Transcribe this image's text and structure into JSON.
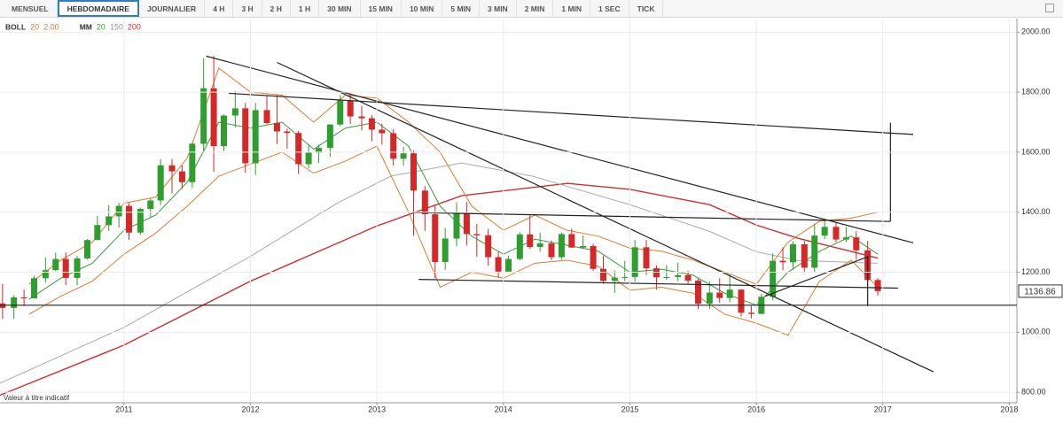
{
  "toolbar": {
    "buttons": [
      "MENSUEL",
      "HEBDOMADAIRE",
      "JOURNALIER",
      "4 H",
      "3 H",
      "2 H",
      "1 H",
      "30 MIN",
      "15 MIN",
      "10 MIN",
      "5 MIN",
      "3 MIN",
      "2 MIN",
      "1 MIN",
      "1 SEC",
      "TICK"
    ],
    "selected": 1
  },
  "chart_data": {
    "type": "candlestick",
    "indicators": [
      {
        "name": "BOLL",
        "params": [
          20,
          "2.00"
        ],
        "colors": [
          "#e07b2e",
          "#e07b2e"
        ]
      },
      {
        "name": "MM",
        "params": [
          20,
          150,
          200
        ],
        "colors": [
          "#3c9a3c",
          "#999999",
          "#d32f2f"
        ]
      }
    ],
    "note": "Valeur à titre indicatif",
    "xlim": [
      2010.02,
      2018.06
    ],
    "xticks": [
      2011,
      2012,
      2013,
      2014,
      2015,
      2016,
      2017,
      2018
    ],
    "ylim": [
      765,
      2045
    ],
    "yticks": [
      {
        "value": 800,
        "label": "800.00"
      },
      {
        "value": 1000,
        "label": "1000.00"
      },
      {
        "value": 1200,
        "label": "1200.00"
      },
      {
        "value": 1400,
        "label": "1400.00"
      },
      {
        "value": 1600,
        "label": "1600.00"
      },
      {
        "value": 1800,
        "label": "1800.00"
      },
      {
        "value": 2000,
        "label": "2000.00"
      }
    ],
    "grid": true,
    "up_color": "#2e9e2e",
    "down_color": "#d62828",
    "last_price": 1136.86,
    "x": [
      2010.04,
      2010.13,
      2010.21,
      2010.29,
      2010.38,
      2010.46,
      2010.54,
      2010.63,
      2010.71,
      2010.79,
      2010.88,
      2010.96,
      2011.04,
      2011.13,
      2011.21,
      2011.29,
      2011.38,
      2011.46,
      2011.54,
      2011.63,
      2011.71,
      2011.79,
      2011.88,
      2011.96,
      2012.04,
      2012.13,
      2012.21,
      2012.29,
      2012.38,
      2012.46,
      2012.54,
      2012.63,
      2012.71,
      2012.79,
      2012.88,
      2012.96,
      2013.04,
      2013.13,
      2013.21,
      2013.29,
      2013.38,
      2013.46,
      2013.54,
      2013.63,
      2013.71,
      2013.79,
      2013.88,
      2013.96,
      2014.04,
      2014.13,
      2014.21,
      2014.29,
      2014.38,
      2014.46,
      2014.54,
      2014.63,
      2014.71,
      2014.79,
      2014.88,
      2014.96,
      2015.04,
      2015.13,
      2015.21,
      2015.29,
      2015.38,
      2015.46,
      2015.54,
      2015.63,
      2015.71,
      2015.79,
      2015.88,
      2015.96,
      2016.04,
      2016.13,
      2016.21,
      2016.29,
      2016.38,
      2016.46,
      2016.54,
      2016.63,
      2016.71,
      2016.79,
      2016.88,
      2016.96
    ],
    "open": [
      1096,
      1081,
      1116,
      1113,
      1180,
      1207,
      1244,
      1181,
      1246,
      1307,
      1357,
      1386,
      1421,
      1332,
      1411,
      1439,
      1556,
      1536,
      1500,
      1628,
      1813,
      1620,
      1722,
      1746,
      1563,
      1740,
      1697,
      1669,
      1664,
      1560,
      1598,
      1614,
      1692,
      1772,
      1719,
      1713,
      1675,
      1663,
      1578,
      1596,
      1472,
      1393,
      1234,
      1312,
      1396,
      1327,
      1323,
      1250,
      1202,
      1244,
      1326,
      1284,
      1296,
      1250,
      1327,
      1282,
      1287,
      1211,
      1171,
      1182,
      1184,
      1283,
      1213,
      1183,
      1184,
      1190,
      1172,
      1095,
      1132,
      1114,
      1142,
      1065,
      1061,
      1118,
      1238,
      1233,
      1293,
      1215,
      1322,
      1351,
      1309,
      1316,
      1273,
      1174
    ],
    "high": [
      1161,
      1123,
      1142,
      1188,
      1249,
      1265,
      1266,
      1254,
      1310,
      1388,
      1424,
      1431,
      1431,
      1415,
      1447,
      1577,
      1577,
      1556,
      1632,
      1913,
      1921,
      1725,
      1803,
      1764,
      1764,
      1791,
      1790,
      1678,
      1671,
      1627,
      1625,
      1693,
      1790,
      1796,
      1754,
      1723,
      1695,
      1677,
      1617,
      1606,
      1487,
      1424,
      1348,
      1433,
      1434,
      1361,
      1344,
      1268,
      1255,
      1333,
      1392,
      1331,
      1306,
      1332,
      1345,
      1322,
      1295,
      1255,
      1206,
      1238,
      1307,
      1308,
      1223,
      1224,
      1232,
      1205,
      1178,
      1170,
      1180,
      1191,
      1142,
      1088,
      1128,
      1263,
      1283,
      1303,
      1304,
      1362,
      1375,
      1367,
      1352,
      1337,
      1304,
      1180
    ],
    "low": [
      1044,
      1045,
      1087,
      1113,
      1165,
      1204,
      1157,
      1157,
      1243,
      1307,
      1337,
      1349,
      1308,
      1325,
      1382,
      1424,
      1463,
      1478,
      1480,
      1601,
      1535,
      1604,
      1682,
      1531,
      1524,
      1693,
      1627,
      1611,
      1527,
      1547,
      1564,
      1585,
      1687,
      1694,
      1672,
      1636,
      1625,
      1555,
      1555,
      1322,
      1338,
      1180,
      1208,
      1286,
      1289,
      1251,
      1221,
      1182,
      1200,
      1240,
      1277,
      1268,
      1240,
      1241,
      1282,
      1281,
      1204,
      1161,
      1131,
      1170,
      1168,
      1191,
      1142,
      1175,
      1170,
      1162,
      1077,
      1077,
      1098,
      1100,
      1052,
      1046,
      1061,
      1106,
      1207,
      1208,
      1199,
      1200,
      1310,
      1300,
      1301,
      1241,
      1171,
      1122
    ],
    "close": [
      1081,
      1116,
      1113,
      1180,
      1207,
      1244,
      1181,
      1246,
      1307,
      1357,
      1386,
      1421,
      1332,
      1411,
      1439,
      1556,
      1536,
      1500,
      1628,
      1813,
      1620,
      1722,
      1746,
      1563,
      1740,
      1697,
      1669,
      1664,
      1560,
      1598,
      1614,
      1692,
      1772,
      1719,
      1713,
      1675,
      1663,
      1578,
      1596,
      1472,
      1393,
      1234,
      1312,
      1396,
      1327,
      1323,
      1250,
      1202,
      1244,
      1326,
      1284,
      1296,
      1250,
      1327,
      1282,
      1287,
      1211,
      1171,
      1182,
      1184,
      1283,
      1213,
      1183,
      1184,
      1190,
      1172,
      1095,
      1132,
      1114,
      1142,
      1065,
      1061,
      1118,
      1238,
      1233,
      1293,
      1215,
      1322,
      1351,
      1309,
      1316,
      1273,
      1174,
      1137
    ],
    "overlays": [
      {
        "color": "#d32f2f",
        "x": [
          2010.02,
          2011,
          2012,
          2013,
          2013.67,
          2014.51,
          2015,
          2015.63,
          2016,
          2016.33,
          2016.96
        ],
        "values": [
          790,
          957,
          1170,
          1354,
          1455,
          1496,
          1476,
          1425,
          1357,
          1313,
          1247
        ]
      },
      {
        "color": "#aaaaaa",
        "x": [
          2010.02,
          2011,
          2012,
          2012.69,
          2013.11,
          2013.67,
          2014.23,
          2015,
          2015.63,
          2016,
          2016.33,
          2016.96
        ],
        "values": [
          830,
          1016,
          1253,
          1431,
          1520,
          1564,
          1520,
          1425,
          1336,
          1268,
          1239,
          1230
        ]
      },
      {
        "color": "#3c9a3c",
        "x": [
          2010.25,
          2010.5,
          2010.75,
          2011,
          2011.25,
          2011.5,
          2011.75,
          2012,
          2012.25,
          2012.5,
          2012.75,
          2013,
          2013.25,
          2013.5,
          2013.75,
          2014,
          2014.25,
          2014.5,
          2014.75,
          2015,
          2015.25,
          2015.5,
          2015.75,
          2016,
          2016.25,
          2016.5,
          2016.75,
          2016.96
        ],
        "values": [
          1110,
          1180,
          1230,
          1340,
          1390,
          1500,
          1700,
          1680,
          1700,
          1610,
          1680,
          1700,
          1620,
          1420,
          1320,
          1260,
          1310,
          1290,
          1270,
          1200,
          1210,
          1190,
          1130,
          1090,
          1200,
          1270,
          1320,
          1260
        ]
      },
      {
        "color": "#e07b2e",
        "x": [
          2010.25,
          2010.5,
          2010.75,
          2011,
          2011.25,
          2011.5,
          2011.75,
          2012,
          2012.25,
          2012.5,
          2012.75,
          2013,
          2013.25,
          2013.5,
          2013.75,
          2014,
          2014.25,
          2014.5,
          2014.75,
          2015,
          2015.25,
          2015.5,
          2015.75,
          2016,
          2016.25,
          2016.5,
          2016.75,
          2016.96
        ],
        "values": [
          1160,
          1240,
          1300,
          1430,
          1450,
          1580,
          1880,
          1800,
          1790,
          1700,
          1790,
          1780,
          1700,
          1600,
          1420,
          1340,
          1390,
          1340,
          1320,
          1280,
          1270,
          1240,
          1200,
          1160,
          1300,
          1370,
          1380,
          1400
        ]
      },
      {
        "color": "#e07b2e",
        "x": [
          2010.25,
          2010.5,
          2010.75,
          2011,
          2011.25,
          2011.5,
          2011.75,
          2012,
          2012.25,
          2012.5,
          2012.75,
          2013,
          2013.25,
          2013.5,
          2013.75,
          2014,
          2014.25,
          2014.5,
          2014.75,
          2015,
          2015.25,
          2015.5,
          2015.75,
          2016,
          2016.25,
          2016.5,
          2016.75,
          2016.96
        ],
        "values": [
          1060,
          1120,
          1170,
          1260,
          1330,
          1420,
          1520,
          1560,
          1600,
          1530,
          1570,
          1620,
          1400,
          1150,
          1200,
          1180,
          1230,
          1240,
          1220,
          1140,
          1150,
          1130,
          1060,
          1030,
          990,
          1170,
          1240,
          1150
        ]
      }
    ],
    "trend_lines": [
      {
        "x": [
          2011.65,
          2017.24
        ],
        "y": [
          1920,
          1298
        ]
      },
      {
        "x": [
          2011.83,
          2017.24
        ],
        "y": [
          1796,
          1659
        ]
      },
      {
        "x": [
          2012.21,
          2017.4
        ],
        "y": [
          1899,
          868
        ]
      },
      {
        "x": [
          2013.28,
          2017.06
        ],
        "y": [
          1399,
          1369
        ]
      },
      {
        "x": [
          2013.33,
          2017.12
        ],
        "y": [
          1176,
          1147
        ]
      },
      {
        "x": [
          2016.07,
          2016.89
        ],
        "y": [
          1120,
          1253
        ]
      },
      {
        "x": [
          2016.88,
          2016.88
        ],
        "y": [
          1253,
          1087
        ]
      },
      {
        "x": [
          2017.06,
          2017.06
        ],
        "y": [
          1698,
          1369
        ]
      }
    ],
    "horizontal_lines": [
      1090
    ]
  }
}
